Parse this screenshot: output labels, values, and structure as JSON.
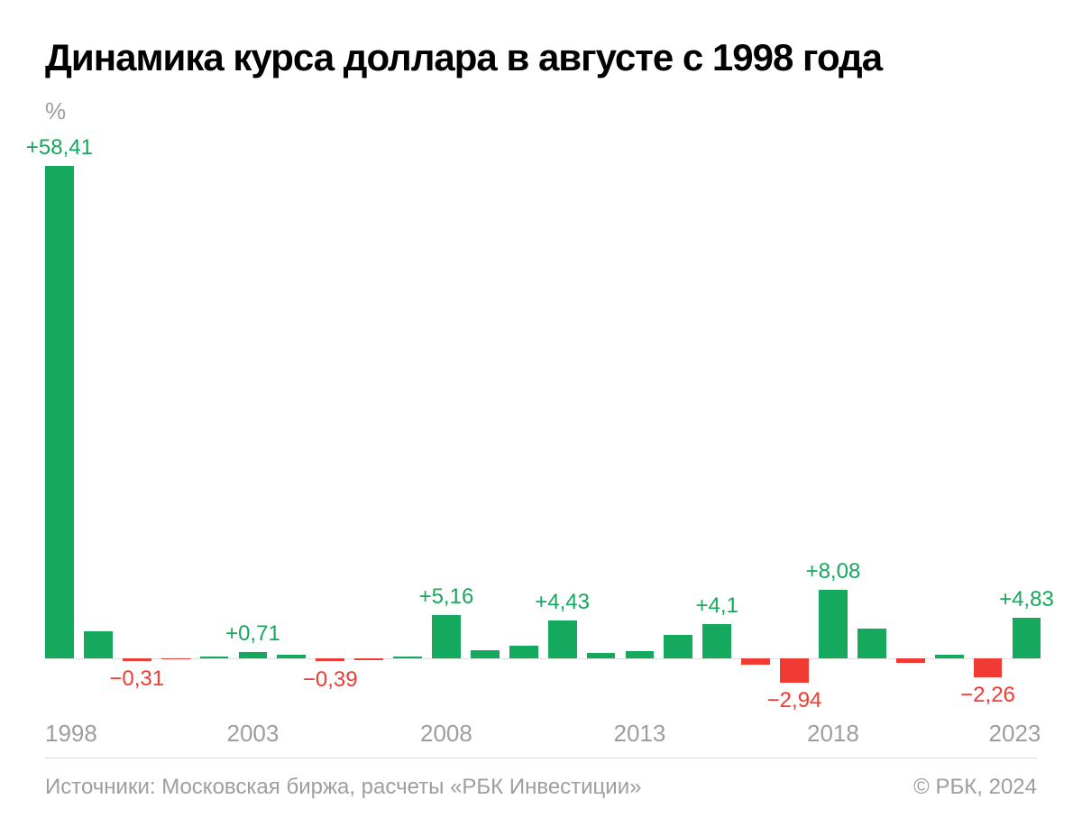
{
  "title": "Динамика курса доллара в августе с 1998 года",
  "title_fontsize": 42,
  "title_color": "#000000",
  "ylabel": "%",
  "ylabel_fontsize": 26,
  "ylabel_color": "#9e9e9e",
  "chart": {
    "type": "bar",
    "positive_color": "#14a95c",
    "negative_color": "#ef3b33",
    "background_color": "#ffffff",
    "baseline_color": "#e0e0e0",
    "bar_width_pct": 2.9,
    "gap_pct": 1.0,
    "value_label_fontsize": 24,
    "x_label_fontsize": 26,
    "x_label_color": "#9e9e9e",
    "ymax": 60,
    "ymin": -6,
    "baseline_from_top_pct": 90.9,
    "years": [
      1998,
      1999,
      2000,
      2001,
      2002,
      2003,
      2004,
      2005,
      2006,
      2007,
      2008,
      2009,
      2010,
      2011,
      2012,
      2013,
      2014,
      2015,
      2016,
      2017,
      2018,
      2019,
      2020,
      2021,
      2022,
      2023
    ],
    "values": [
      58.41,
      3.2,
      -0.31,
      -0.1,
      0.15,
      0.71,
      0.4,
      -0.39,
      -0.2,
      0.15,
      5.16,
      1.0,
      1.5,
      4.43,
      0.6,
      0.8,
      2.8,
      4.1,
      -0.8,
      -2.94,
      8.08,
      3.5,
      -0.5,
      0.4,
      -2.26,
      4.83
    ],
    "labels": {
      "0": "+58,41",
      "2": "−0,31",
      "5": "+0,71",
      "7": "−0,39",
      "10": "+5,16",
      "13": "+4,43",
      "17": "+4,1",
      "19": "−2,94",
      "20": "+8,08",
      "24": "−2,26",
      "25": "+4,83"
    },
    "x_ticks": [
      {
        "year": 1998,
        "label": "1998",
        "align": "left"
      },
      {
        "year": 2003,
        "label": "2003",
        "align": "center"
      },
      {
        "year": 2008,
        "label": "2008",
        "align": "center"
      },
      {
        "year": 2013,
        "label": "2013",
        "align": "center"
      },
      {
        "year": 2018,
        "label": "2018",
        "align": "center"
      },
      {
        "year": 2023,
        "label": "2023",
        "align": "right"
      }
    ]
  },
  "footer": {
    "source": "Источники: Московская биржа, расчеты «РБК Инвестиции»",
    "copyright": "© РБК, 2024",
    "fontsize": 24,
    "color": "#9e9e9e",
    "divider_color": "#d9d9d9"
  }
}
